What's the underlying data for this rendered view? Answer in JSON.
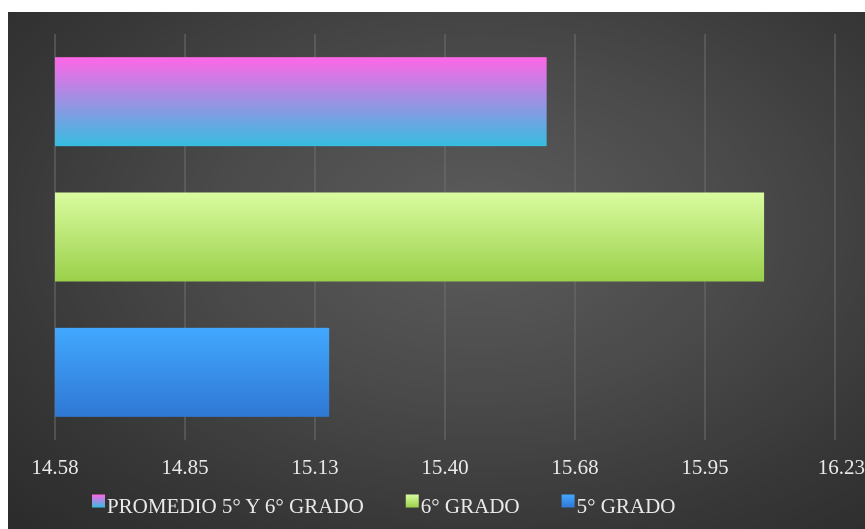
{
  "chart_data": {
    "type": "bar",
    "orientation": "horizontal",
    "title": "",
    "xlabel": "",
    "ylabel": "",
    "categories": [
      "5° GRADO",
      "6° GRADO",
      "PROMEDIO 5° Y 6° GRADO"
    ],
    "series": [
      {
        "name": "5° GRADO",
        "value": 15.16,
        "color_top": "#42a8ff",
        "color_bottom": "#2f78d4"
      },
      {
        "name": "6° GRADO",
        "value": 16.08,
        "color_top": "#d9fca0",
        "color_bottom": "#9bd04a"
      },
      {
        "name": "PROMEDIO 5° Y 6° GRADO",
        "value": 15.62,
        "color_top": "#ff66e6",
        "color_bottom": "#35bde0"
      }
    ],
    "xlim": [
      14.58,
      16.23
    ],
    "x_ticks": [
      "14.58",
      "14.85",
      "15.13",
      "15.40",
      "15.68",
      "15.95",
      "16.23"
    ],
    "x_tick_values": [
      14.58,
      14.855,
      15.13,
      15.405,
      15.68,
      15.955,
      16.23
    ],
    "grid": true,
    "legend_position": "bottom",
    "legend_order": [
      "PROMEDIO 5° Y 6° GRADO",
      "6° GRADO",
      "5° GRADO"
    ],
    "background": "dark-radial"
  }
}
